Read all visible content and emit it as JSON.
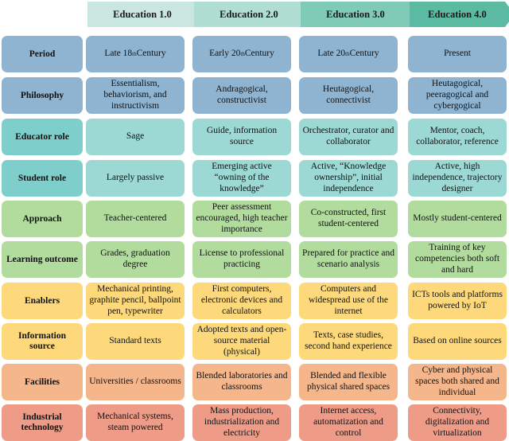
{
  "headers": [
    "Education 1.0",
    "Education 2.0",
    "Education 3.0",
    "Education 4.0"
  ],
  "colors": {
    "header": [
      "#c9e7df",
      "#b1ded3",
      "#7fcbb7",
      "#5bbba2"
    ],
    "blue": "#8eb4d2",
    "teal": "#7ecfcc",
    "tealLight": "#9cd8d4",
    "green": "#b1dc9e",
    "yellow": "#fdd97c",
    "orange": "#f6b68b",
    "salmon": "#ee9c88"
  },
  "rows": [
    {
      "label": "Period",
      "cells": [
        "Late 18th Century",
        "Early 20th Century",
        "Late 20th Century",
        "Present"
      ]
    },
    {
      "label": "Philosophy",
      "cells": [
        "Essentialism, behaviorism, and instructivism",
        "Andragogical, constructivist",
        "Heutagogical, connectivist",
        "Heutagogical, peeragogical and cybergogical"
      ]
    },
    {
      "label": "Educator role",
      "cells": [
        "Sage",
        "Guide, information source",
        "Orchestrator, curator and collaborator",
        "Mentor, coach, collaborator, reference"
      ]
    },
    {
      "label": "Student role",
      "cells": [
        "Largely passive",
        "Emerging active “owning of the knowledge”",
        "Active, “Knowledge ownership”, initial independence",
        "Active, high independence, trajectory designer"
      ]
    },
    {
      "label": "Approach",
      "cells": [
        "Teacher-centered",
        "Peer assessment encouraged, high teacher importance",
        "Co-constructed, first student-centered",
        "Mostly student-centered"
      ]
    },
    {
      "label": "Learning outcome",
      "cells": [
        "Grades, graduation degree",
        "License to professional practicing",
        "Prepared for practice and scenario analysis",
        "Training of key competencies both soft and hard"
      ]
    },
    {
      "label": "Enablers",
      "cells": [
        "Mechanical printing, graphite pencil, ballpoint pen, typewriter",
        "First computers, electronic devices and calculators",
        "Computers and widespread use of the internet",
        "ICTs tools and platforms powered by IoT"
      ]
    },
    {
      "label": "Information source",
      "cells": [
        "Standard texts",
        "Adopted texts and open-source material (physical)",
        "Texts, case studies, second hand experience",
        "Based on online sources"
      ]
    },
    {
      "label": "Facilities",
      "cells": [
        "Universities / classrooms",
        "Blended laboratories and classrooms",
        "Blended and flexible physical shared spaces",
        "Cyber and physical spaces both shared and individual"
      ]
    },
    {
      "label": "Industrial technology",
      "cells": [
        "Mechanical systems, steam powered",
        "Mass production, industrialization and electricity",
        "Internet access, automatization and control",
        "Connectivity, digitalization and virtualization"
      ]
    }
  ]
}
